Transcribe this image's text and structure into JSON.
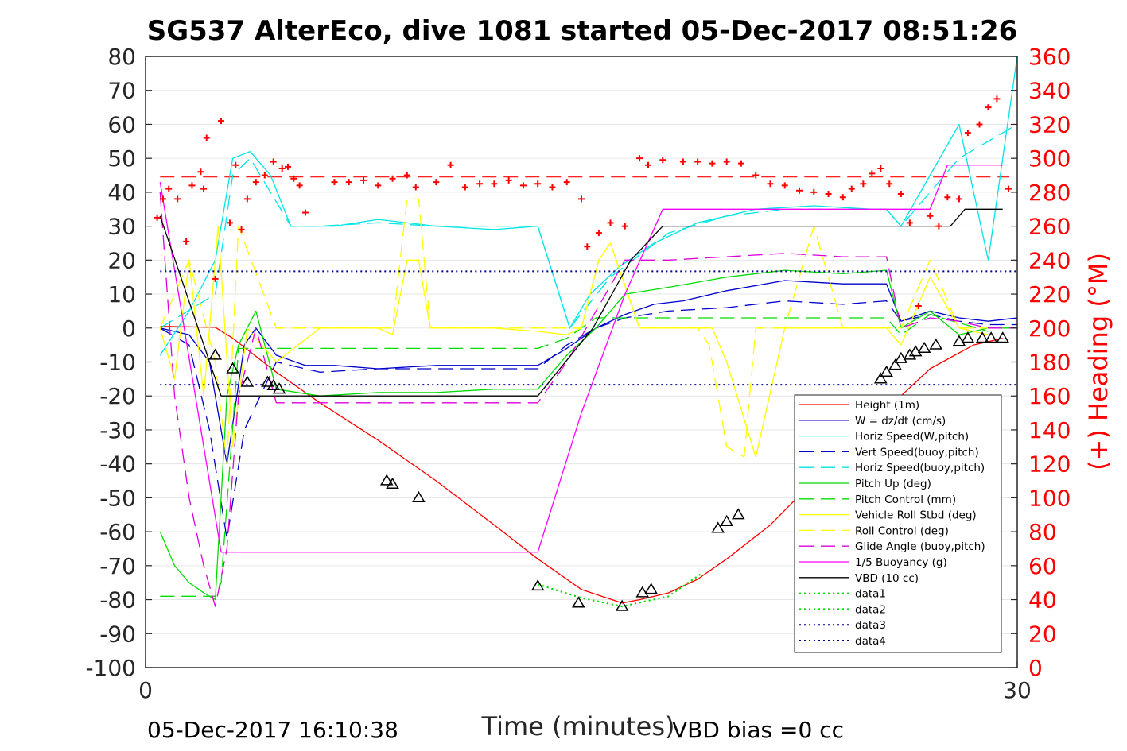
{
  "chart_data": {
    "type": "line",
    "title": "SG537 AlterEco, dive 1081 started 05-Dec-2017 08:51:26",
    "xlabel": "Time (minutes)",
    "ylabel_right": "(+) Heading (°M)",
    "xlim": [
      0,
      30
    ],
    "ylim_left": [
      -100,
      80
    ],
    "ylim_right": [
      0,
      360
    ],
    "x_ticks": [
      "0",
      "30"
    ],
    "y_ticks_left": [
      "80",
      "70",
      "60",
      "50",
      "40",
      "30",
      "20",
      "10",
      "0",
      "-10",
      "-20",
      "-30",
      "-40",
      "-50",
      "-60",
      "-70",
      "-80",
      "-90",
      "-100"
    ],
    "y_ticks_right": [
      "360",
      "340",
      "320",
      "300",
      "280",
      "260",
      "240",
      "220",
      "200",
      "180",
      "160",
      "140",
      "120",
      "100",
      "80",
      "60",
      "40",
      "20",
      "0"
    ],
    "grid": true,
    "legend_position": "bottom-right",
    "footer_left": "05-Dec-2017 16:10:38",
    "footer_right": "VBD bias =0 cc",
    "colors": {
      "height": "#ff0000",
      "w": "#0000cc",
      "horiz_w": "#00e5e5",
      "vert_buoy": "#0000cc",
      "horiz_buoy": "#00e5e5",
      "pitch": "#00dd00",
      "pitch_ctrl": "#00dd00",
      "roll": "#ffff00",
      "roll_ctrl": "#ffff00",
      "glide": "#dd00dd",
      "buoy": "#ff00ff",
      "vbd": "#000000",
      "heading": "#ff0000"
    },
    "series": [
      {
        "name": "Height (1m)",
        "style": "solid",
        "color": "#ff0000",
        "x": [
          0.5,
          2.4,
          3.0,
          4.5,
          6.0,
          8.0,
          10.0,
          12.0,
          13.5,
          15.0,
          16.4,
          17.0,
          18.0,
          19.0,
          20.0,
          21.5,
          23.0,
          25.0,
          27.0,
          28.5,
          29.5
        ],
        "y": [
          0.5,
          0.2,
          -3,
          -13,
          -22,
          -33,
          -45,
          -58,
          -68,
          -77,
          -81,
          -80,
          -78,
          -74,
          -68,
          -58,
          -45,
          -28,
          -12,
          -5,
          -3
        ]
      },
      {
        "name": "W = dz/dt (cm/s)",
        "style": "solid",
        "color": "#0000cc",
        "x": [
          0.5,
          1.5,
          2.2,
          2.8,
          3.4,
          3.8,
          4.5,
          5.5,
          6.5,
          8,
          10,
          12,
          13.5,
          14.5,
          15.5,
          16.5,
          17.5,
          18.5,
          20,
          22,
          24,
          25.5,
          26,
          27,
          28,
          29,
          30
        ],
        "y": [
          0,
          -2,
          -10,
          -40,
          -5,
          0,
          -8,
          -11,
          -11,
          -12,
          -11,
          -11,
          -11,
          -6,
          0,
          4,
          7,
          8,
          11,
          14,
          13,
          13,
          2,
          5,
          3,
          2,
          3
        ]
      },
      {
        "name": "Horiz Speed(W,pitch)",
        "style": "solid",
        "color": "#00e5e5",
        "x": [
          0.5,
          1.5,
          2.4,
          3.0,
          3.6,
          4.3,
          5.0,
          5.5,
          6.5,
          8,
          10,
          12,
          13.5,
          14.6,
          15.3,
          16.3,
          17.5,
          19,
          21,
          23,
          25,
          25.5,
          26,
          27,
          28,
          29,
          30
        ],
        "y": [
          -8,
          5,
          20,
          50,
          52,
          45,
          30,
          30,
          30,
          32,
          30,
          29,
          30,
          0,
          10,
          18,
          25,
          31,
          35,
          36,
          35,
          35,
          30,
          45,
          60,
          20,
          80
        ]
      },
      {
        "name": "Vert Speed(buoy,pitch)",
        "style": "dash",
        "color": "#0000cc",
        "x": [
          0.5,
          1.5,
          2.2,
          2.8,
          3.4,
          4.5,
          6,
          8,
          10,
          12,
          13.5,
          14.5,
          15.5,
          16.5,
          18,
          20,
          22,
          24,
          25.5,
          26,
          27,
          28,
          29,
          30
        ],
        "y": [
          0,
          -5,
          -30,
          -62,
          -30,
          -10,
          -13,
          -12,
          -12,
          -12,
          -12,
          -5,
          0,
          3,
          5,
          6,
          8,
          7,
          8,
          2,
          4,
          2,
          1,
          1
        ]
      },
      {
        "name": "Horiz Speed(buoy,pitch)",
        "style": "dash",
        "color": "#00e5e5",
        "x": [
          0.5,
          2.4,
          3.0,
          3.6,
          4.3,
          5.0,
          6,
          8,
          10,
          12,
          13.5,
          14.6,
          16,
          18,
          20,
          22,
          24,
          25.5,
          26,
          28,
          30
        ],
        "y": [
          0,
          10,
          45,
          50,
          40,
          30,
          30,
          31,
          30,
          30,
          30,
          0,
          15,
          28,
          33,
          35,
          35,
          35,
          30,
          50,
          60
        ]
      },
      {
        "name": "Pitch Up (deg)",
        "style": "solid",
        "color": "#00dd00",
        "x": [
          0.5,
          1.0,
          1.5,
          2.0,
          2.4,
          2.8,
          3.2,
          3.8,
          4.5,
          6,
          8,
          10,
          12,
          13.5,
          14.5,
          15.5,
          16.5,
          18,
          20,
          22,
          24,
          25.5,
          26,
          27,
          28,
          29,
          30
        ],
        "y": [
          -60,
          -70,
          -75,
          -78,
          -80,
          -20,
          -5,
          5,
          -18,
          -20,
          -19,
          -19,
          -18,
          -18,
          -8,
          0,
          10,
          12,
          15,
          17,
          16,
          17,
          0,
          5,
          -2,
          0,
          0
        ]
      },
      {
        "name": "Pitch Control (mm)",
        "style": "dash",
        "color": "#00dd00",
        "x": [
          0.5,
          2.4,
          2.6,
          3.2,
          4.5,
          6,
          8,
          10,
          12,
          13.5,
          14.5,
          15.5,
          16.5,
          18,
          20,
          22,
          24,
          25.5,
          26,
          27,
          29
        ],
        "y": [
          -79,
          -79,
          -75,
          -6,
          -6,
          -6,
          -6,
          -6,
          -6,
          -6,
          -3,
          3,
          3,
          3,
          3,
          3,
          3,
          3,
          -2,
          4,
          -1
        ]
      },
      {
        "name": "Vehicle Roll Stbd (deg)",
        "style": "solid",
        "color": "#ffff00",
        "x": [
          0.5,
          1.0,
          1.5,
          2.0,
          2.5,
          3.0,
          3.5,
          4.0,
          4.5,
          6,
          8,
          8.5,
          9,
          9.4,
          9.8,
          10.4,
          12,
          13.5,
          14.5,
          15,
          15.6,
          16,
          17,
          18.5,
          19.5,
          20,
          21,
          22,
          23,
          24,
          25,
          25.5,
          26,
          27,
          28,
          29
        ],
        "y": [
          0,
          -15,
          20,
          -20,
          30,
          -35,
          0,
          -5,
          -10,
          0,
          0,
          -2,
          20,
          20,
          0,
          0,
          0,
          -1,
          -2,
          0,
          20,
          25,
          0,
          0,
          0,
          -10,
          -38,
          0,
          0,
          0,
          0,
          0,
          -5,
          15,
          0,
          -2
        ]
      },
      {
        "name": "Roll Control (deg)",
        "style": "dash",
        "color": "#ffff00",
        "x": [
          0.5,
          1.5,
          2.4,
          2.8,
          3.2,
          4.5,
          6,
          8,
          8.5,
          9,
          9.4,
          9.8,
          10.4,
          12,
          13.5,
          14.5,
          15,
          15.6,
          16,
          17,
          19,
          19.4,
          20,
          20.6,
          21,
          22,
          23,
          24,
          25,
          26,
          27,
          28,
          29
        ],
        "y": [
          0,
          20,
          -10,
          -40,
          30,
          0,
          0,
          0,
          0,
          38,
          38,
          0,
          0,
          0,
          0,
          0,
          0,
          20,
          25,
          0,
          0,
          -5,
          -35,
          -38,
          0,
          0,
          30,
          0,
          0,
          0,
          20,
          0,
          0
        ]
      },
      {
        "name": "Glide Angle (buoy,pitch)",
        "style": "dash",
        "color": "#dd00dd",
        "x": [
          0.5,
          1.0,
          1.5,
          2.0,
          2.4,
          2.8,
          3.2,
          3.8,
          4.5,
          6,
          8,
          10,
          12,
          13.5,
          14.5,
          15.5,
          16.5,
          18,
          20,
          22,
          24,
          25.5,
          26,
          27,
          28,
          29,
          30
        ],
        "y": [
          40,
          -20,
          -50,
          -70,
          -82,
          -65,
          -20,
          0,
          -22,
          -22,
          -22,
          -22,
          -22,
          -22,
          -10,
          5,
          20,
          20,
          21,
          22,
          21,
          21,
          0,
          3,
          2,
          0,
          0
        ]
      },
      {
        "name": "1/5 Buoyancy (g)",
        "style": "solid",
        "color": "#ff00ff",
        "x": [
          0.5,
          2.6,
          13.5,
          15.0,
          16.5,
          17.8,
          20,
          23,
          25,
          27,
          27.6,
          29.5
        ],
        "y": [
          43,
          -66,
          -66,
          -25,
          10,
          35,
          35,
          35,
          35,
          35,
          48,
          48
        ]
      },
      {
        "name": "VBD (10 cc)",
        "style": "solid",
        "color": "#000000",
        "x": [
          0.5,
          2.6,
          13.5,
          15.4,
          16.7,
          17.8,
          23,
          27.7,
          28.2,
          29.5
        ],
        "y": [
          33,
          -20,
          -20,
          0,
          20,
          30,
          30,
          30,
          35,
          35
        ]
      },
      {
        "name": "data1",
        "style": "dot",
        "color": "#00dd00",
        "x": [
          13.5,
          15,
          16.4,
          18,
          19.1
        ],
        "y": [
          -75.5,
          -79.5,
          -82,
          -79,
          -72.5
        ]
      },
      {
        "name": "data2",
        "style": "dot",
        "color": "#00dd00",
        "x": [
          13.5,
          15,
          16.4,
          18,
          19.1
        ],
        "y": [
          -75.5,
          -79.5,
          -82,
          -79,
          -72.5
        ]
      },
      {
        "name": "data3",
        "style": "dot",
        "color": "#00008b",
        "x": [
          0.5,
          30
        ],
        "y": [
          16.7,
          16.7
        ]
      },
      {
        "name": "data4",
        "style": "dot",
        "color": "#00008b",
        "x": [
          0.5,
          30
        ],
        "y": [
          -16.7,
          -16.7
        ]
      }
    ],
    "reference_lines": [
      {
        "axis": "right",
        "value": 289,
        "style": "dash",
        "color": "#ff0000"
      }
    ],
    "heading_points": {
      "x": [
        0.4,
        0.6,
        0.8,
        1.1,
        1.4,
        1.6,
        1.9,
        2.0,
        2.1,
        2.4,
        2.6,
        2.9,
        3.1,
        3.3,
        3.5,
        3.8,
        4.1,
        4.4,
        4.7,
        4.9,
        5.1,
        5.3,
        5.5,
        6.5,
        7.0,
        7.5,
        8.0,
        8.5,
        9.0,
        9.3,
        10.0,
        10.5,
        11.0,
        11.5,
        12.0,
        12.5,
        13.0,
        13.5,
        14.0,
        14.5,
        15.0,
        15.2,
        15.6,
        16.0,
        16.5,
        17.0,
        17.3,
        17.8,
        18.5,
        19.0,
        19.5,
        20.0,
        20.5,
        21.0,
        21.5,
        22.0,
        22.5,
        23.0,
        23.5,
        24.0,
        24.3,
        24.7,
        25.0,
        25.3,
        25.6,
        26.0,
        26.3,
        26.6,
        27.0,
        27.3,
        27.6,
        28.0,
        28.3,
        28.7,
        29.0,
        29.3,
        29.7
      ],
      "y": [
        265,
        276,
        282,
        276,
        251,
        284,
        292,
        282,
        312,
        229,
        322,
        262,
        296,
        258,
        276,
        286,
        290,
        298,
        294,
        295,
        288,
        284,
        268,
        286,
        286,
        287,
        284,
        288,
        290,
        283,
        286,
        296,
        283,
        285,
        285,
        287,
        284,
        285,
        283,
        286,
        276,
        248,
        256,
        262,
        260,
        300,
        296,
        299,
        298,
        298,
        297,
        298,
        297,
        290,
        285,
        284,
        281,
        280,
        279,
        277,
        282,
        285,
        291,
        294,
        285,
        279,
        262,
        213,
        266,
        260,
        277,
        276,
        315,
        320,
        330,
        335,
        282
      ]
    },
    "markers": {
      "symbol": "triangle",
      "x": [
        2.4,
        3.0,
        3.5,
        4.2,
        4.4,
        4.6,
        8.3,
        8.5,
        9.4,
        13.5,
        14.9,
        16.4,
        17.1,
        17.4,
        19.7,
        20.0,
        20.4,
        25.3,
        25.5,
        25.8,
        26.0,
        26.3,
        26.5,
        26.8,
        27.2,
        28.0,
        28.3,
        28.8,
        29.1,
        29.5
      ],
      "y": [
        -8,
        -12,
        -16,
        -16,
        -17,
        -18,
        -45,
        -46,
        -50,
        -76,
        -81,
        -82,
        -78,
        -77,
        -59,
        -57,
        -55,
        -15,
        -13,
        -11,
        -9,
        -8,
        -7,
        -6,
        -5,
        -4,
        -3,
        -3,
        -3,
        -3
      ]
    }
  }
}
